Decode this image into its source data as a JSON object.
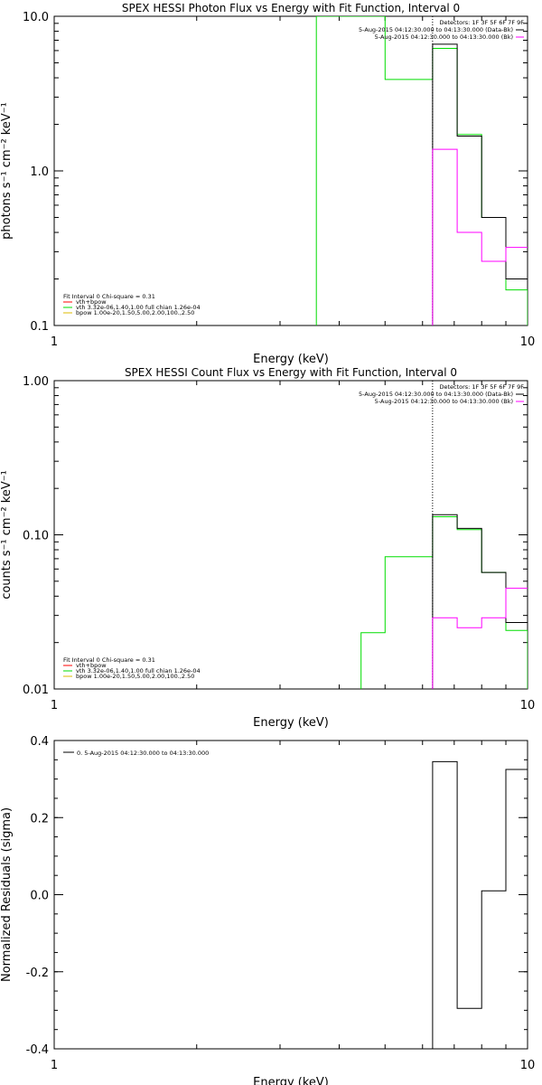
{
  "colors": {
    "data": "#000000",
    "background": "#ff00ff",
    "fit_total": "#ff0000",
    "vth": "#00dd00",
    "bpow": "#ddbb00",
    "axis": "#000000"
  },
  "chart_data": [
    {
      "type": "line",
      "id": "photon",
      "title": "SPEX HESSI Photon Flux vs Energy with Fit Function, Interval 0",
      "xlabel": "Energy (keV)",
      "ylabel": "photons s⁻¹ cm⁻² keV⁻¹",
      "xscale": "log",
      "yscale": "log",
      "xlim": [
        1,
        10
      ],
      "ylim": [
        0.1,
        10.0
      ],
      "xticks": [
        {
          "v": 1,
          "label": "1"
        },
        {
          "v": 10,
          "label": "10"
        }
      ],
      "yticks": [
        {
          "v": 0.1,
          "label": "0.1"
        },
        {
          "v": 1.0,
          "label": "1.0"
        },
        {
          "v": 10.0,
          "label": "10.0"
        }
      ],
      "vline_x": 6.3,
      "legend_top": {
        "detectors": "Detectors: 1F 3F 5F 6F 7F 9F",
        "entries": [
          {
            "text": "5-Aug-2015 04:12:30.000 to 04:13:30.000 (Data-Bk)",
            "color": "#000000"
          },
          {
            "text": "5-Aug-2015 04:12:30.000 to 04:13:30.000 (Bk)",
            "color": "#ff00ff"
          }
        ]
      },
      "legend_bottom": {
        "header": "Fit Interval 0   Chi-square = 0.31",
        "entries": [
          {
            "text": "vth+bpow",
            "color": "#ff0000"
          },
          {
            "text": "vth 3.32e-06,1.40,1.00  full chian 1.26e-04",
            "color": "#00dd00"
          },
          {
            "text": "bpow 1.00e-20,1.50,5.00,2.00,100.,2.50",
            "color": "#ddbb00"
          }
        ]
      },
      "series": [
        {
          "color": "#00dd00",
          "x": [
            3.58,
            3.58,
            5.0,
            5.0,
            6.3,
            6.3,
            7.1,
            7.1,
            8.0,
            8.0,
            9.0,
            9.0,
            10.0,
            10.0
          ],
          "y": [
            0.1,
            10.0,
            10.0,
            3.9,
            3.9,
            6.2,
            6.2,
            1.72,
            1.72,
            0.5,
            0.5,
            0.17,
            0.17,
            0.1
          ]
        },
        {
          "color": "#000000",
          "x": [
            6.3,
            6.3,
            7.1,
            7.1,
            8.0,
            8.0,
            9.0,
            9.0,
            10.0
          ],
          "y": [
            0.1,
            6.6,
            6.6,
            1.68,
            1.68,
            0.5,
            0.5,
            0.2,
            0.2
          ]
        },
        {
          "color": "#ff00ff",
          "x": [
            6.3,
            6.3,
            7.1,
            7.1,
            8.0,
            8.0,
            9.0,
            9.0,
            10.0
          ],
          "y": [
            0.1,
            1.38,
            1.38,
            0.4,
            0.4,
            0.26,
            0.26,
            0.32,
            0.32
          ]
        }
      ]
    },
    {
      "type": "line",
      "id": "count",
      "title": "SPEX HESSI Count Flux vs Energy with Fit Function, Interval 0",
      "xlabel": "Energy (keV)",
      "ylabel": "counts s⁻¹ cm⁻² keV⁻¹",
      "xscale": "log",
      "yscale": "log",
      "xlim": [
        1,
        10
      ],
      "ylim": [
        0.01,
        1.0
      ],
      "xticks": [
        {
          "v": 1,
          "label": "1"
        },
        {
          "v": 10,
          "label": "10"
        }
      ],
      "yticks": [
        {
          "v": 0.01,
          "label": "0.01"
        },
        {
          "v": 0.1,
          "label": "0.10"
        },
        {
          "v": 1.0,
          "label": "1.00"
        }
      ],
      "vline_x": 6.3,
      "legend_top": {
        "detectors": "Detectors: 1F 3F 5F 6F 7F 9F",
        "entries": [
          {
            "text": "5-Aug-2015 04:12:30.000 to 04:13:30.000 (Data-Bk)",
            "color": "#000000"
          },
          {
            "text": "5-Aug-2015 04:12:30.000 to 04:13:30.000 (Bk)",
            "color": "#ff00ff"
          }
        ]
      },
      "legend_bottom": {
        "header": "Fit Interval 0   Chi-square = 0.31",
        "entries": [
          {
            "text": "vth+bpow",
            "color": "#ff0000"
          },
          {
            "text": "vth 3.32e-06,1.40,1.00  full chian 1.26e-04",
            "color": "#00dd00"
          },
          {
            "text": "bpow 1.00e-20,1.50,5.00,2.00,100.,2.50",
            "color": "#ddbb00"
          }
        ]
      },
      "series": [
        {
          "color": "#00dd00",
          "x": [
            4.45,
            4.45,
            5.0,
            5.0,
            6.3,
            6.3,
            7.1,
            7.1,
            8.0,
            8.0,
            9.0,
            9.0,
            10.0,
            10.0
          ],
          "y": [
            0.01,
            0.0232,
            0.0232,
            0.072,
            0.072,
            0.131,
            0.131,
            0.108,
            0.108,
            0.057,
            0.057,
            0.024,
            0.024,
            0.01
          ]
        },
        {
          "color": "#000000",
          "x": [
            6.3,
            6.3,
            7.1,
            7.1,
            8.0,
            8.0,
            9.0,
            9.0,
            10.0
          ],
          "y": [
            0.01,
            0.135,
            0.135,
            0.11,
            0.11,
            0.057,
            0.057,
            0.027,
            0.027
          ]
        },
        {
          "color": "#ff00ff",
          "x": [
            6.3,
            6.3,
            7.1,
            7.1,
            8.0,
            8.0,
            9.0,
            9.0,
            10.0
          ],
          "y": [
            0.01,
            0.029,
            0.029,
            0.025,
            0.025,
            0.029,
            0.029,
            0.045,
            0.045
          ]
        }
      ]
    },
    {
      "type": "line",
      "id": "residuals",
      "title": "",
      "xlabel": "Energy (keV)",
      "ylabel": "Normalized Residuals (sigma)",
      "xscale": "log",
      "yscale": "linear",
      "xlim": [
        1,
        10
      ],
      "ylim": [
        -0.4,
        0.4
      ],
      "xticks": [
        {
          "v": 1,
          "label": "1"
        },
        {
          "v": 10,
          "label": "10"
        }
      ],
      "yticks": [
        {
          "v": -0.4,
          "label": "-0.4"
        },
        {
          "v": -0.2,
          "label": "-0.2"
        },
        {
          "v": 0.0,
          "label": "0.0"
        },
        {
          "v": 0.2,
          "label": "0.2"
        },
        {
          "v": 0.4,
          "label": "0.4"
        }
      ],
      "legend_top_left": "0. 5-Aug-2015 04:12:30.000 to 04:13:30.000",
      "series": [
        {
          "color": "#000000",
          "x": [
            6.3,
            6.3,
            7.1,
            7.1,
            8.0,
            8.0,
            9.0,
            9.0,
            10.0
          ],
          "y": [
            -0.4,
            0.345,
            0.345,
            -0.295,
            -0.295,
            0.01,
            0.01,
            0.325,
            0.325
          ]
        }
      ]
    }
  ]
}
